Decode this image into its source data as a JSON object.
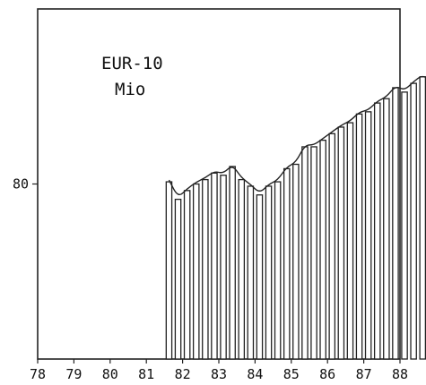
{
  "chart_data": {
    "type": "bar",
    "title": "EUR-10",
    "subtitle": "Mio",
    "x_tick_labels": [
      "78",
      "79",
      "80",
      "81",
      "82",
      "83",
      "84",
      "85",
      "86",
      "87",
      "88"
    ],
    "y_tick_labels": [
      {
        "value": 80,
        "label": "80"
      }
    ],
    "ylim": [
      40,
      120
    ],
    "series": [
      {
        "start_quarter": "1981 Q3",
        "values": [
          80.5,
          76.5,
          78.5,
          80.0,
          81.0,
          82.5,
          82.0,
          84.0,
          81.0,
          79.5,
          77.5,
          79.5,
          80.5,
          83.5,
          84.5,
          88.5,
          88.5,
          90.0,
          91.5,
          93.0,
          94.0,
          96.0,
          96.5,
          98.5,
          99.5,
          102.0,
          101.0,
          103.0,
          104.5,
          103.0,
          98.0
        ]
      }
    ],
    "grid": false,
    "legend": "none"
  }
}
